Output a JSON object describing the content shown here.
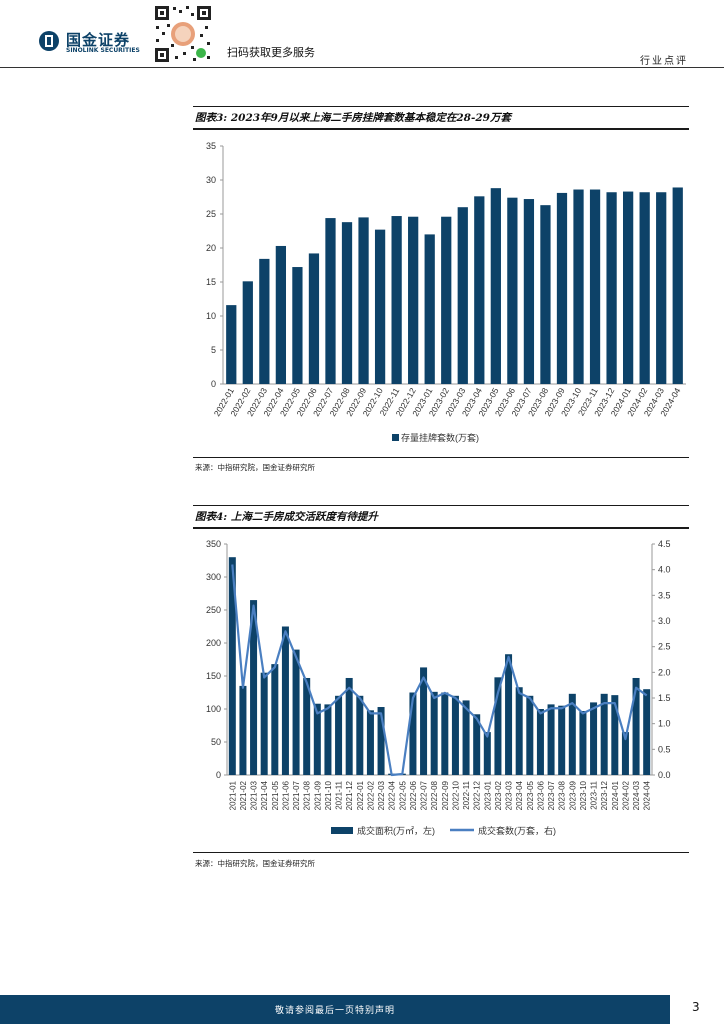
{
  "header": {
    "logo_cn": "国金证券",
    "logo_en": "SINOLINK SECURITIES",
    "qr_caption": "扫码获取更多服务",
    "section": "行业点评"
  },
  "figure3": {
    "title": "图表3: 2023年9月以来上海二手房挂牌套数基本稳定在28-29万套",
    "source": "来源：中指研究院，国金证券研究所"
  },
  "figure4": {
    "title": "图表4: 上海二手房成交活跃度有待提升",
    "source": "来源：中指研究院，国金证券研究所"
  },
  "footer": {
    "disclaimer": "敬请参阅最后一页特别声明",
    "page_number": "3"
  },
  "colors": {
    "bar": "#0d4268",
    "line": "#4a7fc1",
    "footer_bar": "#0d4268"
  },
  "chart_data": [
    {
      "type": "bar",
      "categories": [
        "2022-01",
        "2022-02",
        "2022-03",
        "2022-04",
        "2022-05",
        "2022-06",
        "2022-07",
        "2022-08",
        "2022-09",
        "2022-10",
        "2022-11",
        "2022-12",
        "2023-01",
        "2023-02",
        "2023-03",
        "2023-04",
        "2023-05",
        "2023-06",
        "2023-07",
        "2023-08",
        "2023-09",
        "2023-10",
        "2023-11",
        "2023-12",
        "2024-01",
        "2024-02",
        "2024-03",
        "2024-04"
      ],
      "series": [
        {
          "name": "存量挂牌套数(万套)",
          "values": [
            11.6,
            15.1,
            18.4,
            20.3,
            17.2,
            19.2,
            24.4,
            23.8,
            24.5,
            22.7,
            24.7,
            24.6,
            22.0,
            24.6,
            26.0,
            27.6,
            28.8,
            27.4,
            27.2,
            26.3,
            28.1,
            28.6,
            28.6,
            28.2,
            28.3,
            28.2,
            28.2,
            28.9
          ]
        }
      ],
      "ylim": [
        0,
        35
      ],
      "yticks": [
        0,
        5,
        10,
        15,
        20,
        25,
        30,
        35
      ],
      "legend": "bottom"
    },
    {
      "type": "bar",
      "categories": [
        "2021-01",
        "2021-02",
        "2021-03",
        "2021-04",
        "2021-05",
        "2021-06",
        "2021-07",
        "2021-08",
        "2021-09",
        "2021-10",
        "2021-11",
        "2021-12",
        "2022-01",
        "2022-02",
        "2022-03",
        "2022-04",
        "2022-05",
        "2022-06",
        "2022-07",
        "2022-08",
        "2022-09",
        "2022-10",
        "2022-11",
        "2022-12",
        "2023-01",
        "2023-02",
        "2023-03",
        "2023-04",
        "2023-05",
        "2023-06",
        "2023-07",
        "2023-08",
        "2023-09",
        "2023-10",
        "2023-11",
        "2023-12",
        "2024-01",
        "2024-02",
        "2024-03",
        "2024-04"
      ],
      "series": [
        {
          "name": "成交面积(万㎡，左)",
          "type": "bar",
          "axis": "left",
          "values": [
            330,
            135,
            265,
            155,
            168,
            225,
            190,
            147,
            108,
            107,
            120,
            147,
            120,
            98,
            103,
            2,
            2,
            125,
            163,
            126,
            125,
            120,
            113,
            92,
            65,
            148,
            183,
            133,
            120,
            100,
            107,
            105,
            123,
            97,
            110,
            123,
            121,
            65,
            147,
            130
          ]
        },
        {
          "name": "成交套数(万套，右)",
          "type": "line",
          "axis": "right",
          "values": [
            4.1,
            1.7,
            3.3,
            1.9,
            2.1,
            2.8,
            2.3,
            1.8,
            1.2,
            1.3,
            1.5,
            1.7,
            1.5,
            1.2,
            1.2,
            0.0,
            0.02,
            1.5,
            1.9,
            1.5,
            1.6,
            1.5,
            1.3,
            1.1,
            0.75,
            1.6,
            2.3,
            1.6,
            1.5,
            1.2,
            1.3,
            1.3,
            1.4,
            1.2,
            1.3,
            1.4,
            1.4,
            0.7,
            1.7,
            1.55
          ]
        }
      ],
      "ylim_left": [
        0,
        350
      ],
      "yticks_left": [
        0,
        50,
        100,
        150,
        200,
        250,
        300,
        350
      ],
      "ylim_right": [
        0,
        4.5
      ],
      "yticks_right": [
        "0.0",
        "0.5",
        "1.0",
        "1.5",
        "2.0",
        "2.5",
        "3.0",
        "3.5",
        "4.0",
        "4.5"
      ],
      "legend": "bottom"
    }
  ]
}
